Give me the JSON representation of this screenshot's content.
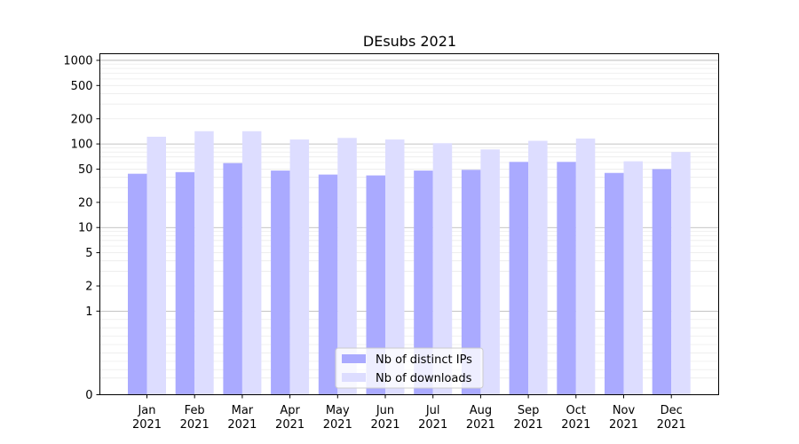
{
  "chart_data": {
    "type": "bar",
    "title": "DEsubs 2021",
    "xlabel": "",
    "ylabel": "",
    "yscale": "symlog",
    "ylim": [
      0,
      1200
    ],
    "yticks": [
      0,
      1,
      2,
      5,
      10,
      20,
      50,
      100,
      200,
      500,
      1000
    ],
    "grid": "horizontal",
    "legend_position": "bottom-center",
    "categories": [
      "Jan 2021",
      "Feb 2021",
      "Mar 2021",
      "Apr 2021",
      "May 2021",
      "Jun 2021",
      "Jul 2021",
      "Aug 2021",
      "Sep 2021",
      "Oct 2021",
      "Nov 2021",
      "Dec 2021"
    ],
    "tick_labels": [
      [
        "Jan",
        "2021"
      ],
      [
        "Feb",
        "2021"
      ],
      [
        "Mar",
        "2021"
      ],
      [
        "Apr",
        "2021"
      ],
      [
        "May",
        "2021"
      ],
      [
        "Jun",
        "2021"
      ],
      [
        "Jul",
        "2021"
      ],
      [
        "Aug",
        "2021"
      ],
      [
        "Sep",
        "2021"
      ],
      [
        "Oct",
        "2021"
      ],
      [
        "Nov",
        "2021"
      ],
      [
        "Dec",
        "2021"
      ]
    ],
    "series": [
      {
        "name": "Nb of distinct IPs",
        "color": "#aaaaff",
        "values": [
          44,
          46,
          59,
          48,
          43,
          42,
          48,
          49,
          61,
          61,
          45,
          50
        ]
      },
      {
        "name": "Nb of downloads",
        "color": "#ddddff",
        "values": [
          122,
          142,
          142,
          113,
          118,
          113,
          102,
          86,
          109,
          116,
          62,
          80
        ]
      }
    ]
  }
}
